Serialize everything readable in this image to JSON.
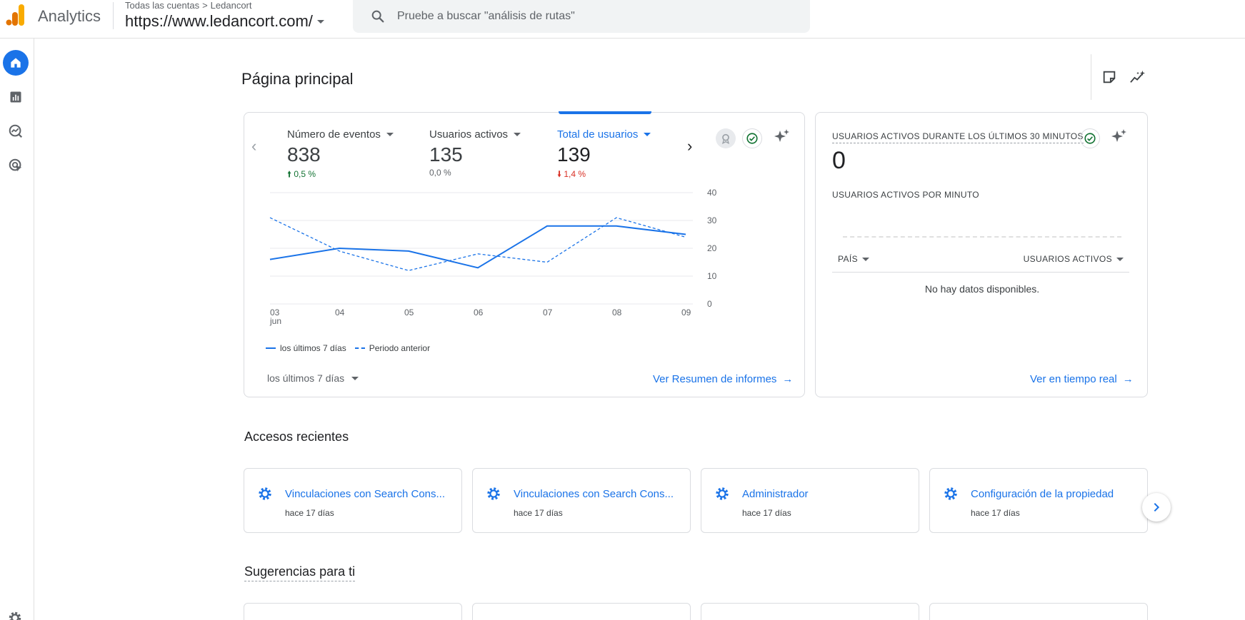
{
  "app": {
    "name": "Analytics"
  },
  "header": {
    "breadcrumb_root": "Todas las cuentas",
    "breadcrumb_separator": ">",
    "breadcrumb_account": "Ledancort",
    "property": "https://www.ledancort.com/"
  },
  "search": {
    "placeholder": "Pruebe a buscar \"análisis de rutas\""
  },
  "rail": {
    "items": [
      {
        "icon": "home-icon",
        "active": true
      },
      {
        "icon": "reports-icon",
        "active": false
      },
      {
        "icon": "explore-icon",
        "active": false
      },
      {
        "icon": "advertising-icon",
        "active": false
      },
      {
        "icon": "settings-icon",
        "active": false
      }
    ]
  },
  "page": {
    "title": "Página principal"
  },
  "overview": {
    "metrics": [
      {
        "label": "Número de eventos",
        "value": "838",
        "delta": "0,5 %",
        "direction": "up",
        "selected": false
      },
      {
        "label": "Usuarios activos",
        "value": "135",
        "delta": "0,0 %",
        "direction": "neutral",
        "selected": false
      },
      {
        "label": "Total de usuarios",
        "value": "139",
        "delta": "1,4 %",
        "direction": "down",
        "selected": true
      }
    ],
    "legend_current": "los últimos 7 días",
    "legend_previous": "Periodo anterior",
    "period": "los últimos 7 días",
    "link": "Ver Resumen de informes"
  },
  "chart_data": {
    "type": "line",
    "x": [
      "03",
      "04",
      "05",
      "06",
      "07",
      "08",
      "09"
    ],
    "x_sublabel_first": "jun",
    "ylim": [
      0,
      40
    ],
    "yticks": [
      "40",
      "30",
      "20",
      "10",
      "0"
    ],
    "series": [
      {
        "name": "los últimos 7 días",
        "style": "solid",
        "values": [
          16,
          20,
          19,
          13,
          28,
          28,
          25
        ]
      },
      {
        "name": "Periodo anterior",
        "style": "dashed",
        "values": [
          31,
          19,
          12,
          18,
          15,
          31,
          24
        ]
      }
    ],
    "color": "#1a73e8",
    "grid": true
  },
  "realtime": {
    "title": "USUARIOS ACTIVOS DURANTE LOS ÚLTIMOS 30 MINUTOS",
    "value": "0",
    "subtitle": "USUARIOS ACTIVOS POR MINUTO",
    "col_country": "PAÍS",
    "col_users": "USUARIOS ACTIVOS",
    "empty": "No hay datos disponibles.",
    "link": "Ver en tiempo real"
  },
  "recent": {
    "title": "Accesos recientes",
    "items": [
      {
        "title": "Vinculaciones con Search Cons...",
        "time": "hace 17 días"
      },
      {
        "title": "Vinculaciones con Search Cons...",
        "time": "hace 17 días"
      },
      {
        "title": "Administrador",
        "time": "hace 17 días"
      },
      {
        "title": "Configuración de la propiedad",
        "time": "hace 17 días"
      }
    ]
  },
  "suggestions": {
    "title": "Sugerencias para ti"
  },
  "colors": {
    "accent": "#1a73e8",
    "up": "#137333",
    "down": "#d93025",
    "logo_orange": "#f9ab00",
    "logo_dark": "#e37400"
  }
}
